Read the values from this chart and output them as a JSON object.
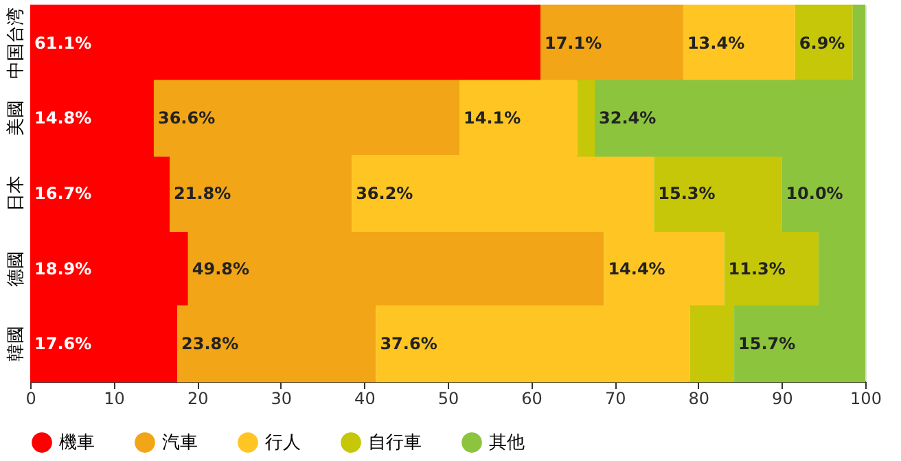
{
  "chart_data": {
    "type": "bar",
    "orientation": "horizontal",
    "stacked": true,
    "categories": [
      "中国台湾",
      "美國",
      "日本",
      "德國",
      "韓國"
    ],
    "series": [
      {
        "name": "機車",
        "color": "#ff0000",
        "values": [
          61.1,
          14.8,
          16.7,
          18.9,
          17.6
        ],
        "value_labels": [
          "61.1%",
          "14.8%",
          "16.7%",
          "18.9%",
          "17.6%"
        ]
      },
      {
        "name": "汽車",
        "color": "#f2a516",
        "values": [
          17.1,
          36.6,
          21.8,
          49.8,
          23.8
        ],
        "value_labels": [
          "17.1%",
          "36.6%",
          "21.8%",
          "49.8%",
          "23.8%"
        ]
      },
      {
        "name": "行人",
        "color": "#ffc623",
        "values": [
          13.4,
          14.1,
          36.2,
          14.4,
          37.6
        ],
        "value_labels": [
          "13.4%",
          "14.1%",
          "36.2%",
          "14.4%",
          "37.6%"
        ]
      },
      {
        "name": "自行車",
        "color": "#c5c708",
        "values": [
          6.9,
          2.1,
          15.3,
          11.3,
          5.3
        ],
        "value_labels": [
          "6.9%",
          null,
          "15.3%",
          "11.3%",
          null
        ]
      },
      {
        "name": "其他",
        "color": "#8cc43e",
        "values": [
          1.5,
          32.4,
          10.0,
          5.6,
          15.7
        ],
        "value_labels": [
          null,
          "32.4%",
          "10.0%",
          null,
          "15.7%"
        ]
      }
    ],
    "xlim": [
      0,
      100
    ],
    "xticks": [
      0,
      10,
      20,
      30,
      40,
      50,
      60,
      70,
      80,
      90,
      100
    ],
    "grid": false,
    "legend": "bottom"
  }
}
